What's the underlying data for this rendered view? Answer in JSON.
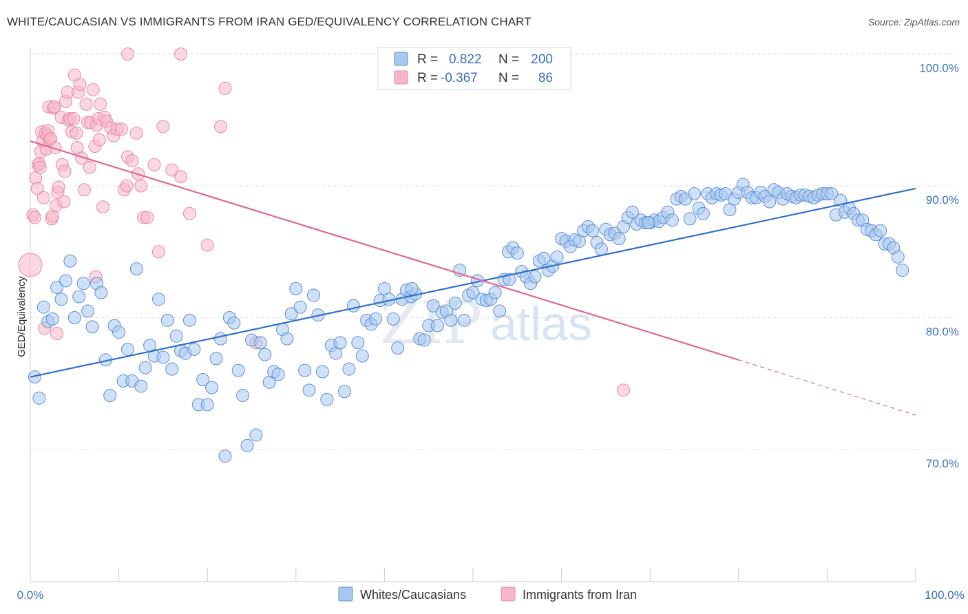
{
  "header": {
    "title": "WHITE/CAUCASIAN VS IMMIGRANTS FROM IRAN GED/EQUIVALENCY CORRELATION CHART",
    "source": "Source: ZipAtlas.com"
  },
  "watermark": {
    "part1": "ZIP",
    "part2": "atlas"
  },
  "legend_box": {
    "rows": [
      {
        "r_label": "R =",
        "r_value": "0.822",
        "n_label": "N =",
        "n_value": "200",
        "color": "#a9c8f0"
      },
      {
        "r_label": "R =",
        "r_value": "-0.367",
        "n_label": "N =",
        "n_value": "86",
        "color": "#f7b6c8"
      }
    ]
  },
  "colors": {
    "blue_fill": "#a9c8f0",
    "blue_stroke": "#5b8fd6",
    "blue_line": "#2e6fcc",
    "pink_fill": "#f7b6c8",
    "pink_stroke": "#e58aa6",
    "pink_line": "#e06890",
    "label_blue": "#3a6fc4"
  },
  "chart_data": {
    "type": "scatter",
    "title": "WHITE/CAUCASIAN VS IMMIGRANTS FROM IRAN GED/EQUIVALENCY CORRELATION CHART",
    "xlabel": "",
    "ylabel": "GED/Equivalency",
    "xlim": [
      0,
      100
    ],
    "ylim": [
      61,
      101
    ],
    "x_tick_labels": [
      "0.0%",
      "100.0%"
    ],
    "y_ticks": [
      70,
      80,
      90,
      100
    ],
    "y_tick_labels": [
      "70.0%",
      "80.0%",
      "90.0%",
      "100.0%"
    ],
    "grid": true,
    "legend_position": "top-center",
    "series": [
      {
        "name": "Whites/Caucasians",
        "R": 0.822,
        "N": 200,
        "trend": {
          "x": [
            0,
            100
          ],
          "y": [
            75.5,
            89.8
          ]
        },
        "points": [
          [
            0.5,
            75.5
          ],
          [
            1,
            73.9
          ],
          [
            1.5,
            80.8
          ],
          [
            2,
            79.7
          ],
          [
            2.5,
            79.9
          ],
          [
            3,
            82.3
          ],
          [
            3.5,
            81.4
          ],
          [
            4,
            82.8
          ],
          [
            4.5,
            84.3
          ],
          [
            5,
            80
          ],
          [
            5.5,
            81.6
          ],
          [
            6,
            82.6
          ],
          [
            6.5,
            80.5
          ],
          [
            7,
            79.3
          ],
          [
            7.5,
            82.6
          ],
          [
            8,
            81.9
          ],
          [
            8.5,
            76.8
          ],
          [
            9,
            74.1
          ],
          [
            9.5,
            79.4
          ],
          [
            10,
            78.9
          ],
          [
            10.5,
            75.2
          ],
          [
            11,
            77.6
          ],
          [
            11.5,
            75.2
          ],
          [
            12,
            83.7
          ],
          [
            12.5,
            74.8
          ],
          [
            13,
            76.2
          ],
          [
            13.5,
            77.9
          ],
          [
            14,
            77.1
          ],
          [
            14.5,
            81.4
          ],
          [
            15,
            77
          ],
          [
            15.5,
            79.8
          ],
          [
            16,
            76.1
          ],
          [
            16.5,
            78.6
          ],
          [
            17,
            77.5
          ],
          [
            17.5,
            77.3
          ],
          [
            18,
            79.8
          ],
          [
            18.5,
            77.6
          ],
          [
            19,
            73.4
          ],
          [
            19.5,
            75.3
          ],
          [
            20,
            73.4
          ],
          [
            20.5,
            74.7
          ],
          [
            21,
            76.9
          ],
          [
            21.5,
            78.4
          ],
          [
            22,
            69.5
          ],
          [
            22.5,
            80
          ],
          [
            23,
            79.6
          ],
          [
            23.5,
            76
          ],
          [
            24,
            74.1
          ],
          [
            24.5,
            70.3
          ],
          [
            25,
            78.3
          ],
          [
            25.5,
            71.1
          ],
          [
            26,
            78.1
          ],
          [
            26.5,
            77.2
          ],
          [
            27,
            75.1
          ],
          [
            27.5,
            75.9
          ],
          [
            28,
            75.7
          ],
          [
            28.5,
            79.1
          ],
          [
            29,
            78.4
          ],
          [
            29.5,
            80.3
          ],
          [
            30,
            82.2
          ],
          [
            30.5,
            80.8
          ],
          [
            31,
            76
          ],
          [
            31.5,
            74.5
          ],
          [
            32,
            81.7
          ],
          [
            32.5,
            80.2
          ],
          [
            33,
            75.9
          ],
          [
            33.5,
            73.8
          ],
          [
            34,
            77.9
          ],
          [
            34.5,
            77.3
          ],
          [
            35,
            78.1
          ],
          [
            35.5,
            74.4
          ],
          [
            36,
            76.1
          ],
          [
            36.5,
            80.9
          ],
          [
            37,
            78.1
          ],
          [
            37.5,
            77.1
          ],
          [
            38,
            79.8
          ],
          [
            38.5,
            79.5
          ],
          [
            39,
            79.9
          ],
          [
            39.5,
            81.3
          ],
          [
            40,
            82.2
          ],
          [
            40.5,
            81.4
          ],
          [
            41,
            79.9
          ],
          [
            41.5,
            77.7
          ],
          [
            42,
            81.4
          ],
          [
            42.5,
            82.1
          ],
          [
            43,
            81.6
          ],
          [
            43.5,
            81.8
          ],
          [
            44,
            78.4
          ],
          [
            44.5,
            78.3
          ],
          [
            45,
            79.4
          ],
          [
            45.5,
            80.9
          ],
          [
            46,
            79.4
          ],
          [
            46.5,
            80.4
          ],
          [
            47,
            80.5
          ],
          [
            47.5,
            79.8
          ],
          [
            48,
            81.1
          ],
          [
            48.5,
            83.6
          ],
          [
            49,
            79.8
          ],
          [
            49.5,
            81.7
          ],
          [
            50,
            81.9
          ],
          [
            50.5,
            82.8
          ],
          [
            51,
            81.4
          ],
          [
            51.5,
            81.3
          ],
          [
            52,
            81.4
          ],
          [
            52.5,
            81.9
          ],
          [
            53,
            80.5
          ],
          [
            53.5,
            82.9
          ],
          [
            54,
            85
          ],
          [
            54.5,
            85.3
          ],
          [
            55,
            84.9
          ],
          [
            55.5,
            83.5
          ],
          [
            56,
            83.1
          ],
          [
            56.5,
            82.6
          ],
          [
            57,
            83.1
          ],
          [
            57.5,
            84.3
          ],
          [
            58,
            84.5
          ],
          [
            58.5,
            83.6
          ],
          [
            59,
            83.9
          ],
          [
            59.5,
            84.6
          ],
          [
            60,
            86
          ],
          [
            60.5,
            85.8
          ],
          [
            61,
            85.4
          ],
          [
            61.5,
            85.9
          ],
          [
            62,
            85.8
          ],
          [
            62.5,
            86.6
          ],
          [
            63,
            86.9
          ],
          [
            63.5,
            86.6
          ],
          [
            64,
            85.7
          ],
          [
            64.5,
            85.2
          ],
          [
            65,
            86.7
          ],
          [
            65.5,
            86.3
          ],
          [
            66,
            86.4
          ],
          [
            66.5,
            86
          ],
          [
            67,
            86.9
          ],
          [
            67.5,
            87.6
          ],
          [
            68,
            88
          ],
          [
            68.5,
            87.1
          ],
          [
            69,
            87.4
          ],
          [
            69.5,
            87.2
          ],
          [
            70,
            87.2
          ],
          [
            70.5,
            87.4
          ],
          [
            71,
            87.3
          ],
          [
            71.5,
            87.6
          ],
          [
            72,
            88
          ],
          [
            72.5,
            87.4
          ],
          [
            73,
            89
          ],
          [
            73.5,
            89.2
          ],
          [
            74,
            89
          ],
          [
            74.5,
            87.5
          ],
          [
            75,
            89.4
          ],
          [
            75.5,
            88.3
          ],
          [
            76,
            87.9
          ],
          [
            76.5,
            89.4
          ],
          [
            77,
            89.1
          ],
          [
            77.5,
            89.4
          ],
          [
            78,
            89.3
          ],
          [
            78.5,
            89.4
          ],
          [
            79,
            88.2
          ],
          [
            79.5,
            89
          ],
          [
            80,
            89.5
          ],
          [
            80.5,
            90.1
          ],
          [
            81,
            89.5
          ],
          [
            81.5,
            89.1
          ],
          [
            82,
            89.1
          ],
          [
            82.5,
            89.5
          ],
          [
            83,
            89.2
          ],
          [
            83.5,
            88.8
          ],
          [
            84,
            89.7
          ],
          [
            84.5,
            89.5
          ],
          [
            85,
            89
          ],
          [
            85.5,
            89.4
          ],
          [
            86,
            89.2
          ],
          [
            86.5,
            89.1
          ],
          [
            87,
            89.3
          ],
          [
            87.5,
            89.3
          ],
          [
            88,
            89.2
          ],
          [
            88.5,
            89.1
          ],
          [
            89,
            89.3
          ],
          [
            89.5,
            89.4
          ],
          [
            90,
            89.4
          ],
          [
            90.5,
            89.4
          ],
          [
            91,
            87.8
          ],
          [
            91.5,
            88.9
          ],
          [
            92,
            88
          ],
          [
            92.5,
            88.3
          ],
          [
            93,
            87.9
          ],
          [
            93.5,
            87.4
          ],
          [
            94,
            87.4
          ],
          [
            94.5,
            86.7
          ],
          [
            95,
            86.6
          ],
          [
            95.5,
            86.3
          ],
          [
            96,
            86.6
          ],
          [
            96.5,
            85.6
          ],
          [
            97,
            85.6
          ],
          [
            97.5,
            85.3
          ],
          [
            98,
            84.6
          ],
          [
            98.5,
            83.6
          ],
          [
            54.1,
            82.9
          ],
          [
            43.1,
            82.2
          ],
          [
            69.8,
            87.2
          ]
        ]
      },
      {
        "name": "Immigrants from Iran",
        "R": -0.367,
        "N": 86,
        "trend": {
          "x": [
            0,
            80
          ],
          "y": [
            93.4,
            76.8
          ]
        },
        "trend_dashed": {
          "x": [
            80,
            100
          ],
          "y": [
            76.8,
            72.6
          ]
        },
        "points": [
          [
            0,
            84
          ],
          [
            0.3,
            87.8
          ],
          [
            0.5,
            87.6
          ],
          [
            0.6,
            90.6
          ],
          [
            0.8,
            89.8
          ],
          [
            0.9,
            91.6
          ],
          [
            1,
            91.7
          ],
          [
            1.1,
            91.4
          ],
          [
            1.2,
            92.6
          ],
          [
            1.3,
            94.1
          ],
          [
            1.4,
            93.4
          ],
          [
            1.5,
            89.1
          ],
          [
            1.6,
            79.2
          ],
          [
            1.7,
            94
          ],
          [
            1.8,
            92.8
          ],
          [
            1.9,
            93.8
          ],
          [
            2,
            94.2
          ],
          [
            2.1,
            96
          ],
          [
            2.2,
            93.5
          ],
          [
            2.3,
            93.6
          ],
          [
            2.4,
            87.5
          ],
          [
            2.5,
            87.7
          ],
          [
            2.6,
            95.9
          ],
          [
            2.7,
            96
          ],
          [
            2.8,
            92.9
          ],
          [
            2.9,
            88.5
          ],
          [
            3,
            78.8
          ],
          [
            3.1,
            89.5
          ],
          [
            3.2,
            89.9
          ],
          [
            3.5,
            95.2
          ],
          [
            3.6,
            91.6
          ],
          [
            3.8,
            88.8
          ],
          [
            3.9,
            91.1
          ],
          [
            4,
            96.4
          ],
          [
            4.2,
            97.1
          ],
          [
            4.3,
            95
          ],
          [
            4.5,
            95.1
          ],
          [
            4.7,
            94.1
          ],
          [
            4.9,
            95.1
          ],
          [
            5,
            98.4
          ],
          [
            5.2,
            94
          ],
          [
            5.3,
            92.9
          ],
          [
            5.4,
            97.1
          ],
          [
            5.6,
            97.7
          ],
          [
            5.8,
            92.1
          ],
          [
            6.1,
            89.7
          ],
          [
            6.3,
            96.2
          ],
          [
            6.5,
            94.8
          ],
          [
            6.7,
            91.4
          ],
          [
            6.8,
            94.8
          ],
          [
            7.1,
            97.3
          ],
          [
            7.3,
            93
          ],
          [
            7.5,
            94.6
          ],
          [
            7.7,
            95.1
          ],
          [
            7.8,
            93.5
          ],
          [
            7.9,
            96.2
          ],
          [
            7.4,
            83.1
          ],
          [
            8.2,
            88.4
          ],
          [
            8.4,
            95.2
          ],
          [
            8.6,
            94.9
          ],
          [
            9.1,
            94.4
          ],
          [
            9.4,
            93.8
          ],
          [
            9.8,
            94.3
          ],
          [
            10.3,
            94.3
          ],
          [
            10.6,
            89.7
          ],
          [
            10.9,
            90
          ],
          [
            11,
            92.2
          ],
          [
            11.5,
            91.9
          ],
          [
            12,
            94
          ],
          [
            12.2,
            90.9
          ],
          [
            12.5,
            90
          ],
          [
            12.8,
            87.6
          ],
          [
            13.2,
            87.6
          ],
          [
            14,
            91.6
          ],
          [
            14.5,
            85
          ],
          [
            15,
            94.5
          ],
          [
            16,
            91.2
          ],
          [
            17,
            90.7
          ],
          [
            18,
            87.9
          ],
          [
            20,
            85.5
          ],
          [
            21.5,
            94.5
          ],
          [
            22,
            97.4
          ],
          [
            25.5,
            78.1
          ],
          [
            11,
            100
          ],
          [
            17,
            100
          ],
          [
            67,
            74.5
          ]
        ]
      }
    ]
  },
  "bottom_legend": {
    "items": [
      {
        "label": "Whites/Caucasians",
        "color": "#a9c8f0"
      },
      {
        "label": "Immigrants from Iran",
        "color": "#f7b6c8"
      }
    ]
  }
}
